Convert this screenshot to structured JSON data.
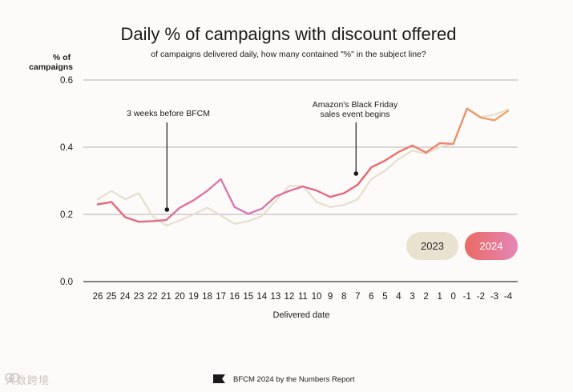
{
  "chart_data": {
    "type": "line",
    "title": "Daily % of campaigns with discount offered",
    "subtitle": "of campaigns delivered daily, how many contained \"%\" in the subject line?",
    "ylabel": "% of campaigns",
    "xlabel": "Delivered date",
    "ylim": [
      0,
      0.6
    ],
    "yticks": [
      "0.0",
      "0.2",
      "0.4",
      "0.6"
    ],
    "grid": true,
    "categories": [
      "26",
      "25",
      "24",
      "23",
      "22",
      "21",
      "20",
      "19",
      "18",
      "17",
      "16",
      "15",
      "14",
      "13",
      "12",
      "11",
      "10",
      "9",
      "8",
      "7",
      "6",
      "5",
      "4",
      "3",
      "2",
      "1",
      "0",
      "-1",
      "-2",
      "-3",
      "-4"
    ],
    "series": [
      {
        "name": "2023",
        "color": "#e6dfcd",
        "values": [
          0.245,
          0.27,
          0.245,
          0.263,
          0.195,
          0.167,
          0.182,
          0.2,
          0.22,
          0.197,
          0.172,
          0.18,
          0.195,
          0.24,
          0.285,
          0.285,
          0.237,
          0.222,
          0.228,
          0.245,
          0.305,
          0.33,
          0.365,
          0.39,
          0.38,
          0.4,
          0.41,
          0.515,
          0.49,
          0.497,
          0.512
        ]
      },
      {
        "name": "2024",
        "color_start": "#e8636b",
        "color_mid": "#d87ab8",
        "color_end": "#f0a86b",
        "values": [
          0.23,
          0.237,
          0.192,
          0.178,
          0.18,
          0.183,
          0.22,
          0.242,
          0.27,
          0.305,
          0.222,
          0.202,
          0.217,
          0.253,
          0.27,
          0.283,
          0.271,
          0.252,
          0.263,
          0.288,
          0.34,
          0.36,
          0.386,
          0.405,
          0.384,
          0.412,
          0.41,
          0.515,
          0.488,
          0.48,
          0.508
        ]
      }
    ],
    "annotations": [
      {
        "text": "3 weeks before BFCM",
        "category": "21"
      },
      {
        "text_line1": "Amazon's Black Friday",
        "text_line2": "sales event begins",
        "category": "7"
      }
    ],
    "legend": [
      "2023",
      "2024"
    ],
    "legend_position": "bottom-right"
  },
  "footer": "BFCM 2024 by the Numbers Report",
  "watermark": "大数跨境"
}
